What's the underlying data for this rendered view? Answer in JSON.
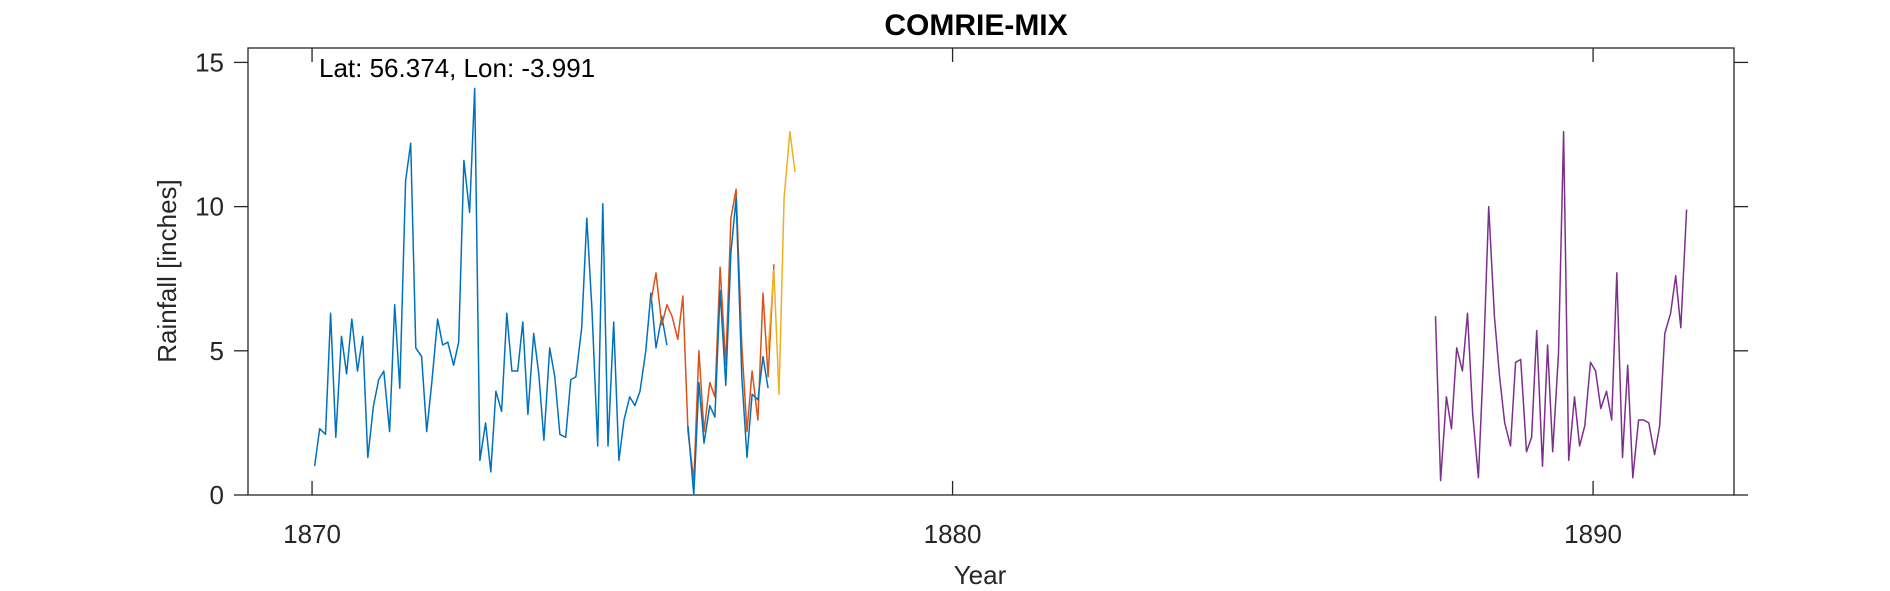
{
  "chart_data": {
    "type": "line",
    "title": "COMRIE-MIX",
    "xlabel": "Year",
    "ylabel": "Rainfall [inches]",
    "annotation": "Lat: 56.374, Lon: -3.991",
    "xlim": [
      1869,
      1892.2
    ],
    "ylim": [
      0,
      15.5
    ],
    "xticks": [
      1870,
      1880,
      1890
    ],
    "yticks": [
      0,
      5,
      10,
      15
    ],
    "grid": false,
    "legend": "none",
    "series": [
      {
        "color": "#0072BD",
        "points": [
          [
            1870.04,
            1.0
          ],
          [
            1870.12,
            2.3
          ],
          [
            1870.21,
            2.1
          ],
          [
            1870.29,
            6.3
          ],
          [
            1870.37,
            2.0
          ],
          [
            1870.46,
            5.5
          ],
          [
            1870.54,
            4.2
          ],
          [
            1870.62,
            6.1
          ],
          [
            1870.71,
            4.3
          ],
          [
            1870.79,
            5.5
          ],
          [
            1870.87,
            1.3
          ],
          [
            1870.96,
            3.1
          ],
          [
            1871.04,
            4.0
          ],
          [
            1871.12,
            4.3
          ],
          [
            1871.21,
            2.2
          ],
          [
            1871.29,
            6.6
          ],
          [
            1871.37,
            3.7
          ],
          [
            1871.46,
            10.9
          ],
          [
            1871.54,
            12.2
          ],
          [
            1871.62,
            5.1
          ],
          [
            1871.71,
            4.8
          ],
          [
            1871.79,
            2.2
          ],
          [
            1871.87,
            3.9
          ],
          [
            1871.96,
            6.1
          ],
          [
            1872.04,
            5.2
          ],
          [
            1872.12,
            5.3
          ],
          [
            1872.21,
            4.5
          ],
          [
            1872.29,
            5.3
          ],
          [
            1872.37,
            11.6
          ],
          [
            1872.46,
            9.8
          ],
          [
            1872.54,
            14.1
          ],
          [
            1872.62,
            1.2
          ],
          [
            1872.71,
            2.5
          ],
          [
            1872.79,
            0.8
          ],
          [
            1872.87,
            3.6
          ],
          [
            1872.96,
            2.9
          ],
          [
            1873.04,
            6.3
          ],
          [
            1873.12,
            4.3
          ],
          [
            1873.21,
            4.3
          ],
          [
            1873.29,
            6.0
          ],
          [
            1873.37,
            2.8
          ],
          [
            1873.46,
            5.6
          ],
          [
            1873.54,
            4.2
          ],
          [
            1873.62,
            1.9
          ],
          [
            1873.71,
            5.1
          ],
          [
            1873.79,
            4.1
          ],
          [
            1873.87,
            2.1
          ],
          [
            1873.96,
            2.0
          ],
          [
            1874.04,
            4.0
          ],
          [
            1874.12,
            4.1
          ],
          [
            1874.21,
            5.8
          ],
          [
            1874.29,
            9.6
          ],
          [
            1874.37,
            6.4
          ],
          [
            1874.46,
            1.7
          ],
          [
            1874.54,
            10.1
          ],
          [
            1874.62,
            1.7
          ],
          [
            1874.71,
            6.0
          ],
          [
            1874.79,
            1.2
          ],
          [
            1874.87,
            2.6
          ],
          [
            1874.96,
            3.4
          ],
          [
            1875.04,
            3.1
          ],
          [
            1875.12,
            3.6
          ],
          [
            1875.21,
            5.0
          ],
          [
            1875.29,
            7.0
          ],
          [
            1875.37,
            5.1
          ],
          [
            1875.46,
            6.2
          ],
          [
            1875.54,
            5.2
          ]
        ]
      },
      {
        "color": "#D95319",
        "points": [
          [
            1875.29,
            6.7
          ],
          [
            1875.37,
            7.7
          ],
          [
            1875.46,
            5.9
          ],
          [
            1875.54,
            6.6
          ],
          [
            1875.62,
            6.2
          ],
          [
            1875.71,
            5.4
          ],
          [
            1875.79,
            6.9
          ],
          [
            1875.87,
            2.2
          ],
          [
            1875.96,
            0.5
          ],
          [
            1876.04,
            5.0
          ],
          [
            1876.12,
            2.2
          ],
          [
            1876.21,
            3.9
          ],
          [
            1876.29,
            3.4
          ],
          [
            1876.37,
            7.9
          ],
          [
            1876.46,
            4.5
          ],
          [
            1876.54,
            9.6
          ],
          [
            1876.62,
            10.6
          ],
          [
            1876.71,
            5.2
          ],
          [
            1876.79,
            2.2
          ],
          [
            1876.87,
            4.3
          ],
          [
            1876.96,
            2.6
          ],
          [
            1877.04,
            7.0
          ],
          [
            1877.12,
            4.1
          ],
          [
            1877.21,
            8.0
          ]
        ]
      },
      {
        "color": "#EDB120",
        "points": [
          [
            1877.12,
            5.0
          ],
          [
            1877.21,
            7.8
          ],
          [
            1877.29,
            3.5
          ],
          [
            1877.37,
            10.3
          ],
          [
            1877.46,
            12.6
          ],
          [
            1877.54,
            11.2
          ]
        ]
      },
      {
        "color": "#0072BD",
        "points": [
          [
            1875.87,
            2.4
          ],
          [
            1875.96,
            0.0
          ],
          [
            1876.04,
            3.9
          ],
          [
            1876.12,
            1.8
          ],
          [
            1876.21,
            3.1
          ],
          [
            1876.29,
            2.7
          ],
          [
            1876.37,
            7.1
          ],
          [
            1876.46,
            3.8
          ],
          [
            1876.54,
            8.4
          ],
          [
            1876.62,
            10.3
          ],
          [
            1876.71,
            4.1
          ],
          [
            1876.79,
            1.3
          ],
          [
            1876.87,
            3.5
          ],
          [
            1876.96,
            3.3
          ],
          [
            1877.04,
            4.8
          ],
          [
            1877.12,
            3.7
          ]
        ]
      },
      {
        "color": "#7E2F8E",
        "points": [
          [
            1887.54,
            6.2
          ],
          [
            1887.62,
            0.5
          ],
          [
            1887.71,
            3.4
          ],
          [
            1887.79,
            2.3
          ],
          [
            1887.87,
            5.1
          ],
          [
            1887.96,
            4.3
          ],
          [
            1888.04,
            6.3
          ],
          [
            1888.12,
            2.8
          ],
          [
            1888.21,
            0.6
          ],
          [
            1888.29,
            4.8
          ],
          [
            1888.37,
            10.0
          ],
          [
            1888.46,
            6.2
          ],
          [
            1888.54,
            4.1
          ],
          [
            1888.62,
            2.5
          ],
          [
            1888.71,
            1.7
          ],
          [
            1888.79,
            4.6
          ],
          [
            1888.87,
            4.7
          ],
          [
            1888.96,
            1.5
          ],
          [
            1889.04,
            2.0
          ],
          [
            1889.12,
            5.7
          ],
          [
            1889.21,
            1.0
          ],
          [
            1889.29,
            5.2
          ],
          [
            1889.37,
            1.5
          ],
          [
            1889.46,
            4.9
          ],
          [
            1889.54,
            12.6
          ],
          [
            1889.62,
            1.2
          ],
          [
            1889.71,
            3.4
          ],
          [
            1889.79,
            1.7
          ],
          [
            1889.87,
            2.4
          ],
          [
            1889.96,
            4.6
          ],
          [
            1890.04,
            4.3
          ],
          [
            1890.12,
            3.0
          ],
          [
            1890.21,
            3.6
          ],
          [
            1890.29,
            2.6
          ],
          [
            1890.37,
            7.7
          ],
          [
            1890.46,
            1.3
          ],
          [
            1890.54,
            4.5
          ],
          [
            1890.62,
            0.6
          ],
          [
            1890.71,
            2.6
          ],
          [
            1890.79,
            2.6
          ],
          [
            1890.87,
            2.5
          ],
          [
            1890.96,
            1.4
          ],
          [
            1891.04,
            2.4
          ],
          [
            1891.12,
            5.6
          ],
          [
            1891.21,
            6.3
          ],
          [
            1891.29,
            7.6
          ],
          [
            1891.37,
            5.8
          ],
          [
            1891.46,
            9.9
          ]
        ]
      }
    ]
  }
}
